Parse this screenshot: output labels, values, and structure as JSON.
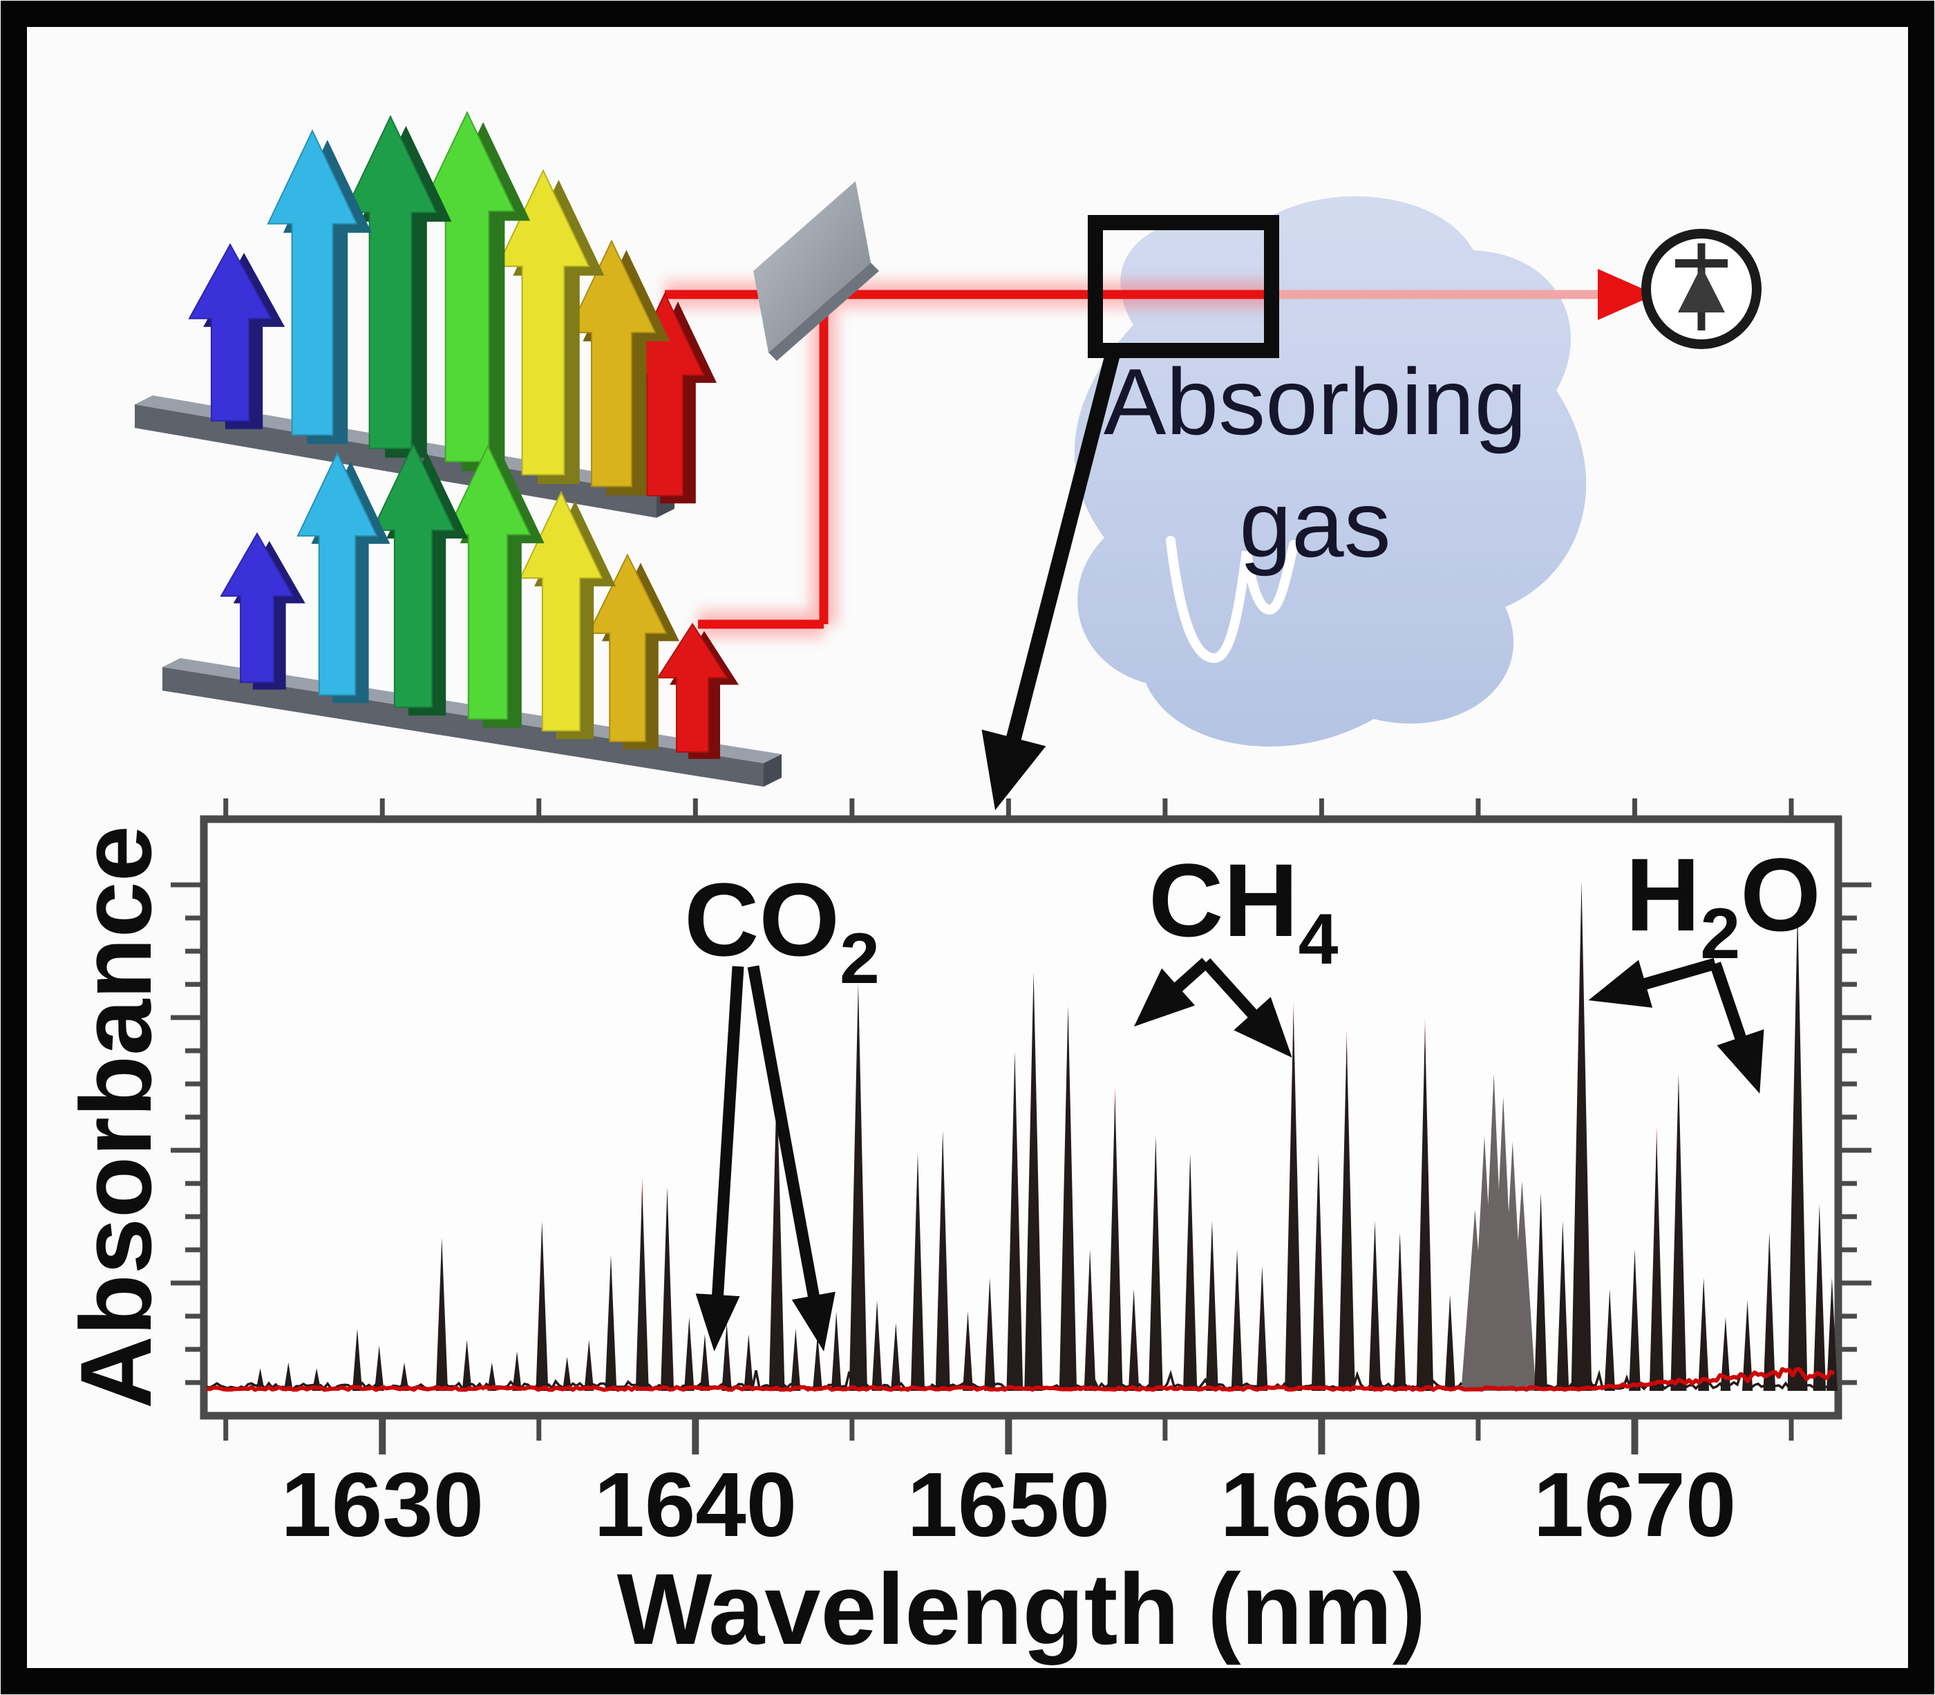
{
  "diagram": {
    "gas_label_line1": "Absorbing",
    "gas_label_line2": "gas",
    "icons": {
      "comb_upper": "frequency-comb-arrows-icon",
      "comb_lower": "frequency-comb-arrows-icon",
      "splitter": "beam-splitter-plate-icon",
      "cell": "gas-cell-rectangle-icon",
      "detector": "photodiode-circle-icon"
    },
    "colors": {
      "comb_arrows": [
        "#3a31d8",
        "#35b7e5",
        "#1f9e4a",
        "#52d937",
        "#e8e22e",
        "#d9b31c",
        "#e01616"
      ],
      "beam": "#e81111",
      "beam_after_cell": "#f0a6a6",
      "rail_top": "#9aa0aa",
      "rail_front": "#5d626b",
      "blob_top": "#d3dbf0",
      "blob_bottom": "#b5c4e4"
    }
  },
  "chart_data": {
    "type": "line",
    "title": "",
    "xlabel": "Wavelength (nm)",
    "ylabel": "Absorbance",
    "xlim": [
      1624.3,
      1676.5
    ],
    "x_ticks": [
      1630,
      1640,
      1650,
      1660,
      1670
    ],
    "x_minor_step_nm": 5,
    "y_tick_labels": "none (unlabeled absorbance axis)",
    "legend": "none",
    "series_note": "black: measured dual-comb absorbance spectrum; red: baseline/residual trace hugging zero, growing noisier at long wavelengths",
    "annotations": [
      {
        "id": "co2",
        "parts": {
          "pre": "CO",
          "sub": "2",
          "post": ""
        },
        "arrow_targets_nm": [
          1640.6,
          1644.1
        ]
      },
      {
        "id": "ch4",
        "parts": {
          "pre": "CH",
          "sub": "4",
          "post": ""
        },
        "arrow_targets_nm": [
          1653.7,
          1659.1
        ]
      },
      {
        "id": "h2o",
        "parts": {
          "pre": "H",
          "sub": "2",
          "post": "O"
        },
        "arrow_targets_nm": [
          1668.3,
          1674.3
        ]
      }
    ],
    "peaks_lambda_nm_relheight_flag": [
      [
        1626.1,
        0.04
      ],
      [
        1627.0,
        0.05
      ],
      [
        1627.9,
        0.04
      ],
      [
        1629.2,
        0.11
      ],
      [
        1629.9,
        0.08
      ],
      [
        1630.7,
        0.05
      ],
      [
        1631.9,
        0.27
      ],
      [
        1632.7,
        0.09
      ],
      [
        1633.5,
        0.05
      ],
      [
        1634.3,
        0.07
      ],
      [
        1635.1,
        0.3
      ],
      [
        1635.9,
        0.06
      ],
      [
        1636.6,
        0.09
      ],
      [
        1637.3,
        0.24
      ],
      [
        1638.3,
        0.36,
        "r"
      ],
      [
        1639.1,
        0.36
      ],
      [
        1639.8,
        0.13
      ],
      [
        1640.3,
        0.1
      ],
      [
        1641.0,
        0.12
      ],
      [
        1641.7,
        0.1
      ],
      [
        1642.6,
        0.55
      ],
      [
        1643.2,
        0.11
      ],
      [
        1643.9,
        0.1
      ],
      [
        1644.5,
        0.14
      ],
      [
        1645.2,
        0.72
      ],
      [
        1645.8,
        0.16
      ],
      [
        1646.4,
        0.12
      ],
      [
        1647.1,
        0.42
      ],
      [
        1647.9,
        0.46
      ],
      [
        1648.7,
        0.14
      ],
      [
        1649.4,
        0.2
      ],
      [
        1650.2,
        0.6
      ],
      [
        1650.8,
        0.74
      ],
      [
        1651.9,
        0.68
      ],
      [
        1652.6,
        0.25
      ],
      [
        1653.4,
        0.52,
        "r"
      ],
      [
        1654.0,
        0.18
      ],
      [
        1654.7,
        0.45
      ],
      [
        1655.8,
        0.42
      ],
      [
        1656.5,
        0.3
      ],
      [
        1657.3,
        0.25
      ],
      [
        1658.1,
        0.22
      ],
      [
        1659.1,
        0.67,
        "r"
      ],
      [
        1659.9,
        0.42
      ],
      [
        1660.8,
        0.62,
        "r"
      ],
      [
        1661.7,
        0.3
      ],
      [
        1662.5,
        0.28
      ],
      [
        1663.3,
        0.64,
        "r"
      ],
      [
        1664.1,
        0.17
      ],
      [
        1664.9,
        0.32,
        "w"
      ],
      [
        1665.2,
        0.45,
        "w"
      ],
      [
        1665.5,
        0.56,
        "w"
      ],
      [
        1665.8,
        0.52,
        "w"
      ],
      [
        1666.1,
        0.44,
        "w"
      ],
      [
        1666.4,
        0.37,
        "w"
      ],
      [
        1667.0,
        0.35
      ],
      [
        1667.7,
        0.3
      ],
      [
        1668.3,
        0.9
      ],
      [
        1669.2,
        0.18
      ],
      [
        1670.0,
        0.25
      ],
      [
        1670.7,
        0.45,
        "r"
      ],
      [
        1671.4,
        0.56
      ],
      [
        1672.2,
        0.2
      ],
      [
        1672.9,
        0.13
      ],
      [
        1673.6,
        0.16
      ],
      [
        1674.3,
        0.28
      ],
      [
        1675.2,
        0.85
      ],
      [
        1675.9,
        0.33
      ],
      [
        1676.3,
        0.2
      ]
    ]
  },
  "colors": {
    "axis": "#4a4a4a",
    "trace_black": "#241b1b",
    "trace_red": "#cc0808",
    "cluster_gray": "#6b6464",
    "text": "#0d0d0d",
    "border": "#050505"
  }
}
